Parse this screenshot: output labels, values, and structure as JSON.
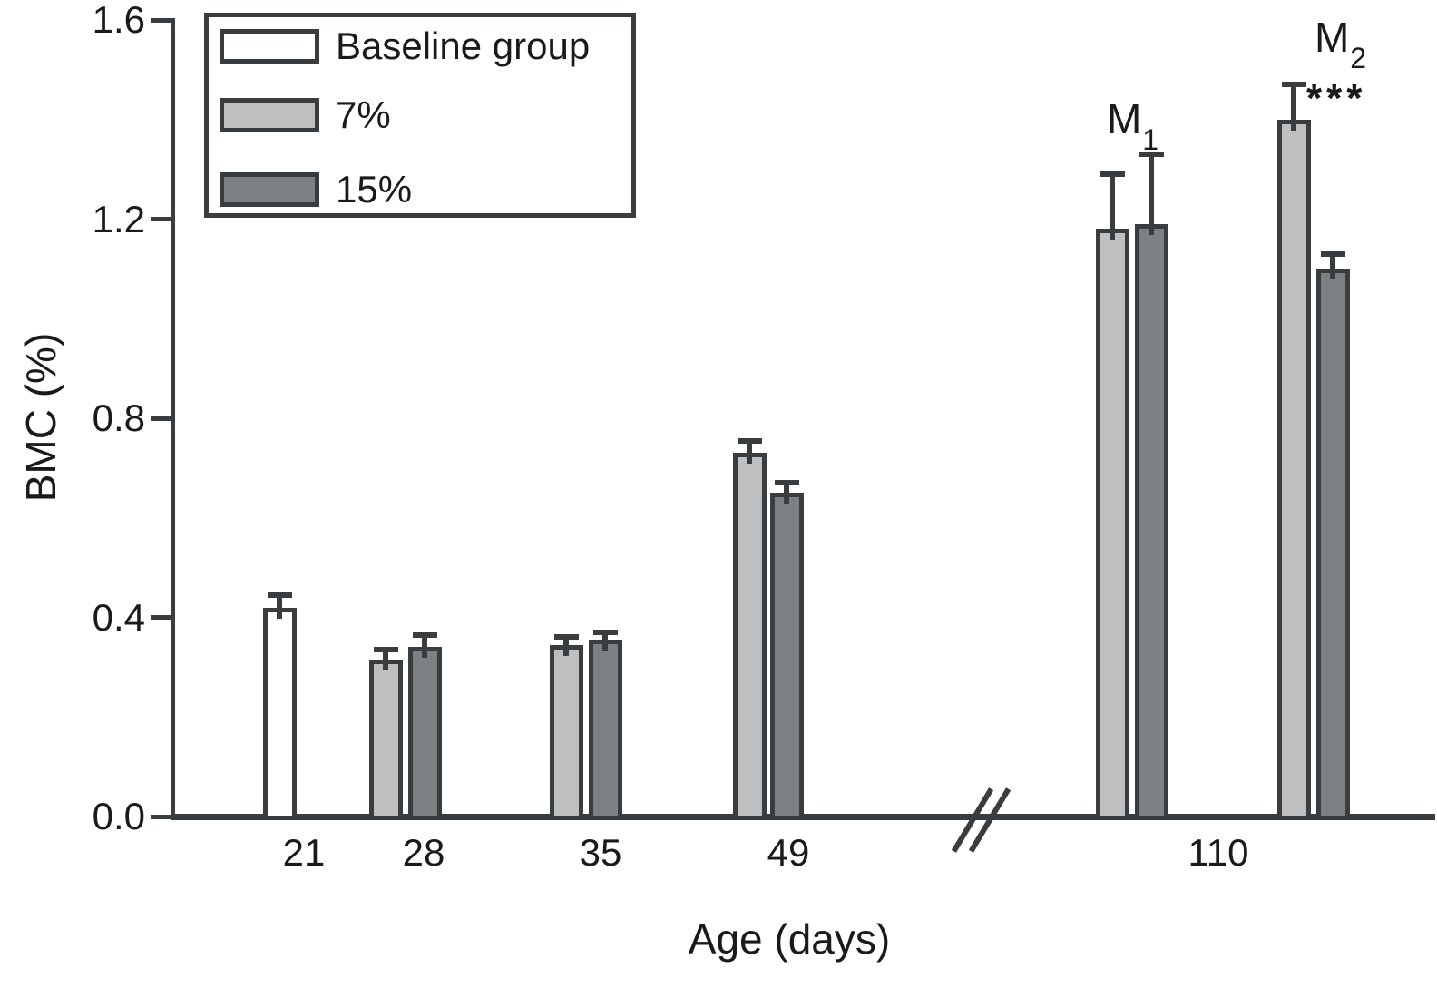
{
  "chart_data": {
    "type": "bar",
    "title": "",
    "ylabel": "BMC (%)",
    "xlabel": "Age (days)",
    "ylim": [
      0,
      1.6
    ],
    "ytick_values": [
      0,
      0.4,
      0.8,
      1.2,
      1.6
    ],
    "ytick_labels": [
      "0.0",
      "0.4",
      "0.8",
      "1.2",
      "1.6"
    ],
    "x_tick_labels": [
      "21",
      "28",
      "35",
      "49",
      "110"
    ],
    "grid": "off",
    "axis_break": {
      "present": true,
      "between": [
        "49",
        "110"
      ]
    },
    "legend": {
      "position": "top-left",
      "items": [
        {
          "label": "Baseline group",
          "color": "#ffffff"
        },
        {
          "label": "7%",
          "color": "#bdbfc0"
        },
        {
          "label": "15%",
          "color": "#7e8183"
        }
      ]
    },
    "groups": [
      {
        "x": "21",
        "bars": [
          {
            "series": "Baseline group",
            "value": 0.42,
            "error_top": 0.445
          }
        ]
      },
      {
        "x": "28",
        "bars": [
          {
            "series": "7%",
            "value": 0.315,
            "error_top": 0.335
          },
          {
            "series": "15%",
            "value": 0.34,
            "error_top": 0.365
          }
        ]
      },
      {
        "x": "35",
        "bars": [
          {
            "series": "7%",
            "value": 0.345,
            "error_top": 0.36
          },
          {
            "series": "15%",
            "value": 0.355,
            "error_top": 0.37
          }
        ]
      },
      {
        "x": "49",
        "bars": [
          {
            "series": "7%",
            "value": 0.73,
            "error_top": 0.755
          },
          {
            "series": "15%",
            "value": 0.65,
            "error_top": 0.67
          }
        ]
      },
      {
        "x": "110",
        "subgroup": "M1",
        "bars": [
          {
            "series": "7%",
            "value": 1.18,
            "error_top": 1.29
          },
          {
            "series": "15%",
            "value": 1.19,
            "error_top": 1.33
          }
        ]
      },
      {
        "x": "110",
        "subgroup": "M2",
        "bars": [
          {
            "series": "7%",
            "value": 1.4,
            "error_top": 1.47,
            "significance": "***"
          },
          {
            "series": "15%",
            "value": 1.1,
            "error_top": 1.13
          }
        ]
      }
    ],
    "annotations": [
      {
        "main": "M",
        "sub": "1"
      },
      {
        "main": "M",
        "sub": "2"
      },
      {
        "stars": "***"
      }
    ]
  }
}
